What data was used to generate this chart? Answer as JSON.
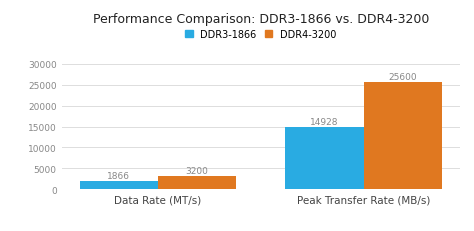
{
  "title": "Performance Comparison: DDR3-1866 vs. DDR4-3200",
  "categories": [
    "Data Rate (MT/s)",
    "Peak Transfer Rate (MB/s)"
  ],
  "ddr3_values": [
    1866,
    14928
  ],
  "ddr4_values": [
    3200,
    25600
  ],
  "ddr3_color": "#29ABE2",
  "ddr4_color": "#E07820",
  "ylim": [
    0,
    30000
  ],
  "yticks": [
    0,
    5000,
    10000,
    15000,
    20000,
    25000,
    30000
  ],
  "legend_ddr3": "DDR3-1866",
  "legend_ddr4": "DDR4-3200",
  "bar_width": 0.38,
  "background_color": "#ffffff",
  "grid_color": "#dddddd",
  "label_fontsize": 7,
  "title_fontsize": 9,
  "tick_fontsize": 6.5,
  "xlabel_fontsize": 7.5,
  "annotation_fontsize": 6.5,
  "annotation_color": "#888888"
}
